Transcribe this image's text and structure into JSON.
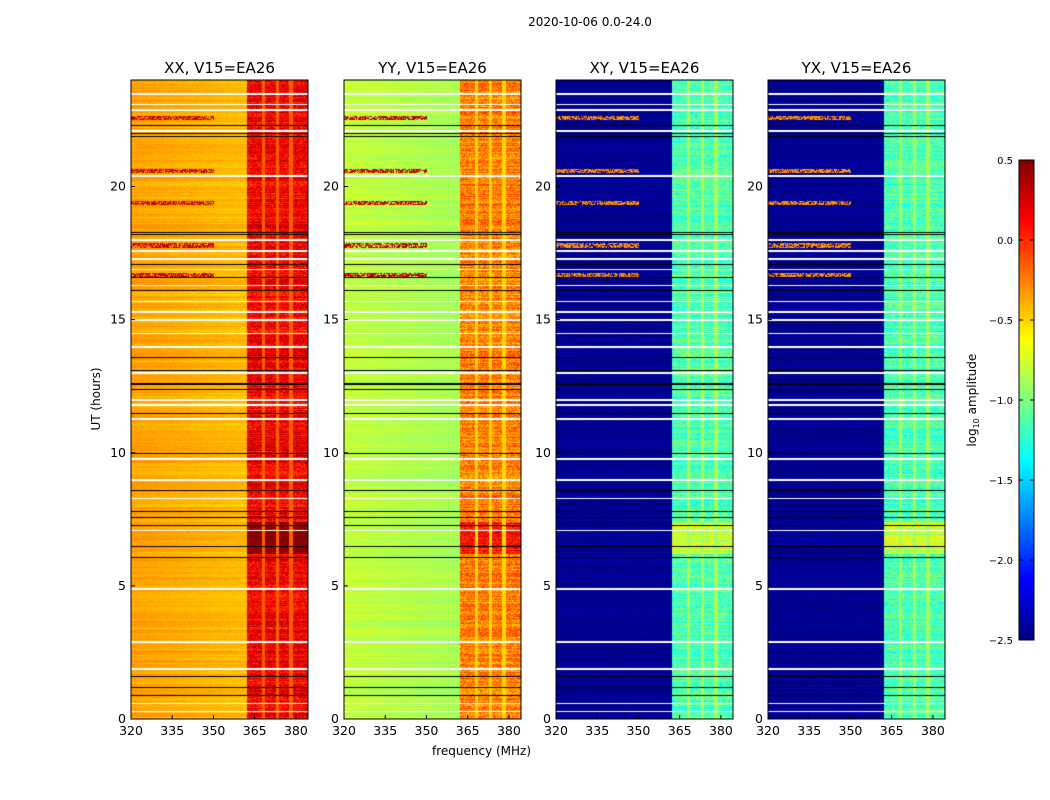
{
  "chart_data": {
    "type": "heatmap",
    "title": "2020-10-06 0.0-24.0",
    "xlabel": "frequency (MHz)",
    "ylabel": "UT (hours)",
    "xlim": [
      320,
      384.4
    ],
    "ylim": [
      0,
      24
    ],
    "xticks": [
      "320",
      "335",
      "350",
      "365",
      "380"
    ],
    "yticks": [
      "0",
      "5",
      "10",
      "15",
      "20"
    ],
    "colorbar": {
      "label": "log10 amplitude",
      "label_main": "log",
      "label_sub": "10",
      "label_rest": " amplitude",
      "range": [
        -2.5,
        0.5
      ],
      "ticks": [
        "0.5",
        "0.0",
        "−0.5",
        "−1.0",
        "−1.5",
        "−2.0",
        "−2.5"
      ],
      "colormap": "jet"
    },
    "band_edge_mhz": 362,
    "panels": [
      {
        "title": "XX, V15=EA26",
        "base": -0.35,
        "band": 0.15,
        "gap_level": -0.15
      },
      {
        "title": "YY, V15=EA26",
        "base": -0.8,
        "band": -0.25,
        "gap_level": -0.5
      },
      {
        "title": "XY, V15=EA26",
        "base": -2.45,
        "band": -1.15,
        "gap_level": -0.9
      },
      {
        "title": "YX, V15=EA26",
        "base": -2.45,
        "band": -1.15,
        "gap_level": -0.9
      }
    ],
    "channel_gaps_mhz": [
      368,
      373,
      378
    ],
    "flagged_white_hours": [
      0.3,
      0.6,
      1.9,
      2.9,
      4.9,
      7.1,
      8.3,
      9.0,
      9.8,
      11.3,
      11.8,
      12.0,
      13.0,
      14.0,
      14.5,
      15.0,
      15.3,
      15.7,
      16.3,
      16.9,
      17.3,
      17.6,
      18.0,
      20.4,
      22.1,
      22.9,
      23.1,
      23.5
    ],
    "black_line_hours": [
      0.9,
      1.2,
      1.6,
      6.1,
      6.5,
      7.3,
      7.6,
      7.8,
      8.6,
      10.0,
      11.5,
      12.4,
      12.6,
      13.1,
      13.6,
      16.1,
      16.6,
      17.1,
      18.2,
      18.3,
      21.9,
      22.0,
      22.3
    ],
    "rfi_hours": [
      16.7,
      17.8,
      19.4,
      20.6,
      22.6
    ]
  }
}
